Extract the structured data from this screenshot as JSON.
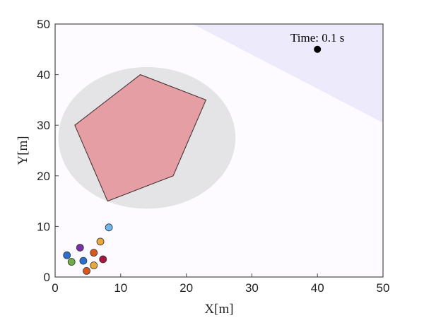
{
  "chart_data": {
    "type": "scatter",
    "title": "",
    "xlabel": "X[m]",
    "ylabel": "Y[m]",
    "xlim": [
      0,
      50
    ],
    "ylim": [
      0,
      50
    ],
    "xticks": [
      "0",
      "10",
      "20",
      "30",
      "40",
      "50"
    ],
    "yticks": [
      "0",
      "10",
      "20",
      "30",
      "40",
      "50"
    ],
    "grid": false,
    "legend": "none",
    "colors": {
      "axes_bg": "#fdfbff",
      "wedge": "#eceafb",
      "ellipse": "#e4e3e6",
      "polygon": "#e59fa4",
      "polygon_edge": "#3a2a2a",
      "target": "#000000"
    },
    "shaded_region": {
      "vertices": [
        [
          21,
          50
        ],
        [
          50,
          50
        ],
        [
          50,
          30.5
        ]
      ]
    },
    "ellipse": {
      "center": [
        14,
        27.5
      ],
      "radius_x": 13.5,
      "radius_y": 14
    },
    "polygon": {
      "vertices": [
        [
          13,
          40
        ],
        [
          23,
          35
        ],
        [
          18,
          20
        ],
        [
          8,
          15
        ],
        [
          3,
          30
        ]
      ]
    },
    "target": {
      "point": [
        40,
        45
      ],
      "label": "Time:  0.1 s"
    },
    "agents": [
      {
        "x": 8.2,
        "y": 9.8,
        "color": "#6fb6ef"
      },
      {
        "x": 3.8,
        "y": 5.8,
        "color": "#7b2fa5"
      },
      {
        "x": 6.9,
        "y": 7.0,
        "color": "#eca93a"
      },
      {
        "x": 1.8,
        "y": 4.3,
        "color": "#2a6fcf"
      },
      {
        "x": 5.9,
        "y": 4.8,
        "color": "#d9561c"
      },
      {
        "x": 4.3,
        "y": 3.2,
        "color": "#2a6fcf"
      },
      {
        "x": 7.3,
        "y": 3.5,
        "color": "#a8173f"
      },
      {
        "x": 2.5,
        "y": 3.0,
        "color": "#70ad47"
      },
      {
        "x": 5.9,
        "y": 2.3,
        "color": "#e6a93a"
      },
      {
        "x": 4.8,
        "y": 1.2,
        "color": "#d9561c"
      }
    ]
  }
}
